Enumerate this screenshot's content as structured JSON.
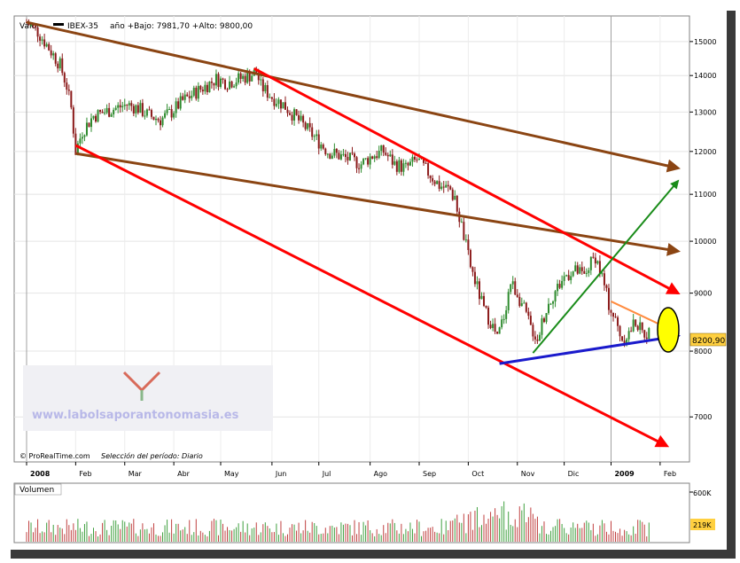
{
  "header": {
    "label": "Valor",
    "instrument": "IBEX-35",
    "range_text": "año +Bajo: 7981,70 +Alto: 9800,00"
  },
  "footer": {
    "source": "© ProRealTime.com",
    "period": "Selección del período: Diario"
  },
  "watermark": "www.labolsaporantonomasia.es",
  "volume_panel": {
    "title": "Volumen"
  },
  "colors": {
    "up_candle": "#2e8b2e",
    "down_candle": "#8b1a1a",
    "red_line": "#ff0000",
    "brown_line": "#8b4513",
    "green_line": "#1a8c1a",
    "blue_line": "#1a1acc",
    "orange_line": "#ff8c40",
    "last_price_box": "#ffd040",
    "marker_circle": "#ffff00"
  },
  "chart_data": [
    {
      "type": "candlestick",
      "title": "IBEX-35",
      "x_months": [
        "2008",
        "Feb",
        "Mar",
        "Abr",
        "May",
        "Jun",
        "Jul",
        "Ago",
        "Sep",
        "Oct",
        "Nov",
        "Dic",
        "2009",
        "Feb"
      ],
      "y_ticks": [
        7000,
        8000,
        9000,
        10000,
        11000,
        12000,
        13000,
        14000,
        15000
      ],
      "y_tick_labels": [
        "7000",
        "8000",
        "9000",
        "10000",
        "11000",
        "12000",
        "13000",
        "14000",
        "15000"
      ],
      "y_scale": "log",
      "ylim": [
        6400,
        15800
      ],
      "last_value_label": "8200,90",
      "last_value": 8200.9,
      "series": [
        {
          "values": [
            [
              0,
              15600
            ],
            [
              5,
              15300
            ],
            [
              10,
              14800
            ],
            [
              15,
              14300
            ],
            [
              18,
              13700
            ],
            [
              20,
              13100
            ],
            [
              22,
              12000
            ],
            [
              25,
              12500
            ],
            [
              30,
              12900
            ],
            [
              35,
              13000
            ],
            [
              40,
              13100
            ],
            [
              45,
              13200
            ],
            [
              50,
              13100
            ],
            [
              55,
              12900
            ],
            [
              60,
              12800
            ],
            [
              65,
              13000
            ],
            [
              70,
              13300
            ],
            [
              75,
              13500
            ],
            [
              80,
              13700
            ],
            [
              85,
              13900
            ],
            [
              90,
              13800
            ],
            [
              95,
              13900
            ],
            [
              100,
              14000
            ],
            [
              103,
              14100
            ],
            [
              105,
              13700
            ],
            [
              110,
              13400
            ],
            [
              115,
              13200
            ],
            [
              120,
              12900
            ],
            [
              125,
              12600
            ],
            [
              130,
              12300
            ],
            [
              135,
              12000
            ],
            [
              140,
              11900
            ],
            [
              145,
              11800
            ],
            [
              150,
              11700
            ],
            [
              155,
              11900
            ],
            [
              160,
              12000
            ],
            [
              165,
              11700
            ],
            [
              170,
              11600
            ],
            [
              175,
              11800
            ],
            [
              180,
              11500
            ],
            [
              185,
              11200
            ],
            [
              190,
              11100
            ],
            [
              193,
              10700
            ],
            [
              196,
              10100
            ],
            [
              199,
              9500
            ],
            [
              202,
              9100
            ],
            [
              205,
              8700
            ],
            [
              208,
              8500
            ],
            [
              211,
              8200
            ],
            [
              214,
              8600
            ],
            [
              217,
              9200
            ],
            [
              220,
              9000
            ],
            [
              223,
              8700
            ],
            [
              226,
              8400
            ],
            [
              229,
              8200
            ],
            [
              232,
              8600
            ],
            [
              235,
              8900
            ],
            [
              238,
              9100
            ],
            [
              241,
              9300
            ],
            [
              244,
              9400
            ],
            [
              247,
              9400
            ],
            [
              250,
              9300
            ],
            [
              252,
              9500
            ],
            [
              255,
              9700
            ],
            [
              258,
              9300
            ],
            [
              261,
              8800
            ],
            [
              264,
              8500
            ],
            [
              267,
              8200
            ],
            [
              270,
              8300
            ],
            [
              273,
              8500
            ],
            [
              276,
              8300
            ],
            [
              279,
              8300
            ]
          ]
        }
      ],
      "trendlines": [
        {
          "color": "brown",
          "from": [
            0,
            15600
          ],
          "to": [
            292,
            11600
          ]
        },
        {
          "color": "brown",
          "from": [
            22,
            11950
          ],
          "to": [
            292,
            9800
          ]
        },
        {
          "color": "red",
          "from": [
            22,
            12150
          ],
          "to": [
            287,
            6600
          ]
        },
        {
          "color": "red",
          "from": [
            102,
            14200
          ],
          "to": [
            292,
            9000
          ]
        },
        {
          "color": "green",
          "from": [
            227,
            7970
          ],
          "to": [
            292,
            11300
          ]
        },
        {
          "color": "blue",
          "from": [
            212,
            7800
          ],
          "to": [
            292,
            8250
          ]
        },
        {
          "color": "orange",
          "from": [
            262,
            8850
          ],
          "to": [
            292,
            8300
          ]
        }
      ]
    },
    {
      "type": "bar",
      "title": "Volumen",
      "y_tick_labels": [
        "600K",
        "219K"
      ],
      "ylim": [
        0,
        700
      ]
    }
  ]
}
